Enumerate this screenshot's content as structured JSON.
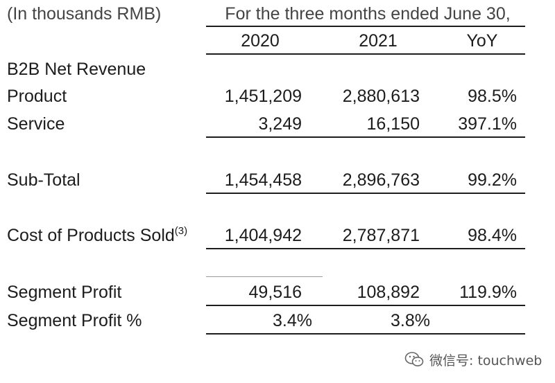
{
  "header": {
    "unit_note": "(In thousands RMB)",
    "period": "For the three months ended June 30,",
    "columns": [
      "2020",
      "2021",
      "YoY"
    ]
  },
  "section_title": "B2B Net Revenue",
  "rows": {
    "product": {
      "label": "Product",
      "v2020": "1,451,209",
      "v2021": "2,880,613",
      "yoy": "98.5%"
    },
    "service": {
      "label": "Service",
      "v2020": "3,249",
      "v2021": "16,150",
      "yoy": "397.1%"
    },
    "subtotal": {
      "label": "Sub-Total",
      "v2020": "1,454,458",
      "v2021": "2,896,763",
      "yoy": "99.2%"
    },
    "cost": {
      "label": "Cost of Products Sold",
      "footnote": "(3)",
      "v2020": "1,404,942",
      "v2021": "2,787,871",
      "yoy": "98.4%"
    },
    "segment_profit": {
      "label": "Segment Profit",
      "v2020": "49,516",
      "v2021": "108,892",
      "yoy": "119.9%"
    },
    "segment_profit_pct": {
      "label": "Segment Profit %",
      "v2020": "3.4%",
      "v2021": "3.8%"
    }
  },
  "watermark": {
    "text": "微信号: touchweb",
    "icon": "wechat-icon"
  }
}
